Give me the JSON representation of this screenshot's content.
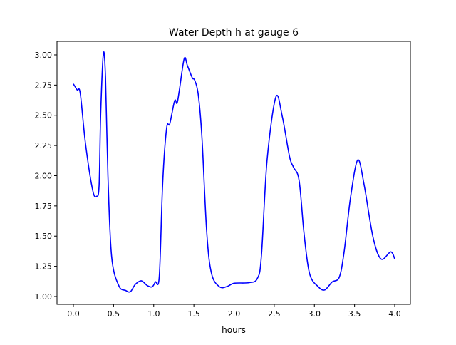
{
  "chart_data": {
    "type": "line",
    "title": "Water Depth h at gauge 6",
    "xlabel": "hours",
    "ylabel": "",
    "xlim": [
      -0.204,
      4.195
    ],
    "ylim": [
      0.935,
      3.112
    ],
    "grid": false,
    "xticks": [
      0.0,
      0.5,
      1.0,
      1.5,
      2.0,
      2.5,
      3.0,
      3.5,
      4.0
    ],
    "xtick_labels": [
      "0.0",
      "0.5",
      "1.0",
      "1.5",
      "2.0",
      "2.5",
      "3.0",
      "3.5",
      "4.0"
    ],
    "yticks": [
      1.0,
      1.25,
      1.5,
      1.75,
      2.0,
      2.25,
      2.5,
      2.75,
      3.0
    ],
    "ytick_labels": [
      "1.00",
      "1.25",
      "1.50",
      "1.75",
      "2.00",
      "2.25",
      "2.50",
      "2.75",
      "3.00"
    ],
    "series": [
      {
        "name": "h",
        "color": "#0000ff",
        "x": [
          0.0,
          0.047,
          0.086,
          0.15,
          0.24,
          0.29,
          0.32,
          0.34,
          0.373,
          0.4,
          0.43,
          0.476,
          0.565,
          0.65,
          0.71,
          0.77,
          0.845,
          0.92,
          0.98,
          1.02,
          1.07,
          1.11,
          1.16,
          1.2,
          1.26,
          1.29,
          1.32,
          1.38,
          1.42,
          1.48,
          1.51,
          1.555,
          1.6,
          1.66,
          1.72,
          1.82,
          1.92,
          2.0,
          2.19,
          2.29,
          2.34,
          2.41,
          2.52,
          2.6,
          2.69,
          2.74,
          2.81,
          2.87,
          2.94,
          3.05,
          3.13,
          3.22,
          3.31,
          3.37,
          3.45,
          3.54,
          3.62,
          3.73,
          3.83,
          3.95,
          4.0
        ],
        "y": [
          2.76,
          2.71,
          2.68,
          2.27,
          1.88,
          1.83,
          1.92,
          2.51,
          3.01,
          2.81,
          2.0,
          1.33,
          1.09,
          1.05,
          1.04,
          1.1,
          1.13,
          1.09,
          1.08,
          1.12,
          1.17,
          1.92,
          2.39,
          2.43,
          2.62,
          2.6,
          2.71,
          2.97,
          2.91,
          2.81,
          2.79,
          2.67,
          2.32,
          1.53,
          1.19,
          1.08,
          1.085,
          1.11,
          1.115,
          1.15,
          1.33,
          2.12,
          2.65,
          2.49,
          2.16,
          2.07,
          1.96,
          1.53,
          1.19,
          1.08,
          1.055,
          1.12,
          1.16,
          1.37,
          1.82,
          2.13,
          1.92,
          1.49,
          1.31,
          1.37,
          1.31
        ]
      }
    ]
  }
}
